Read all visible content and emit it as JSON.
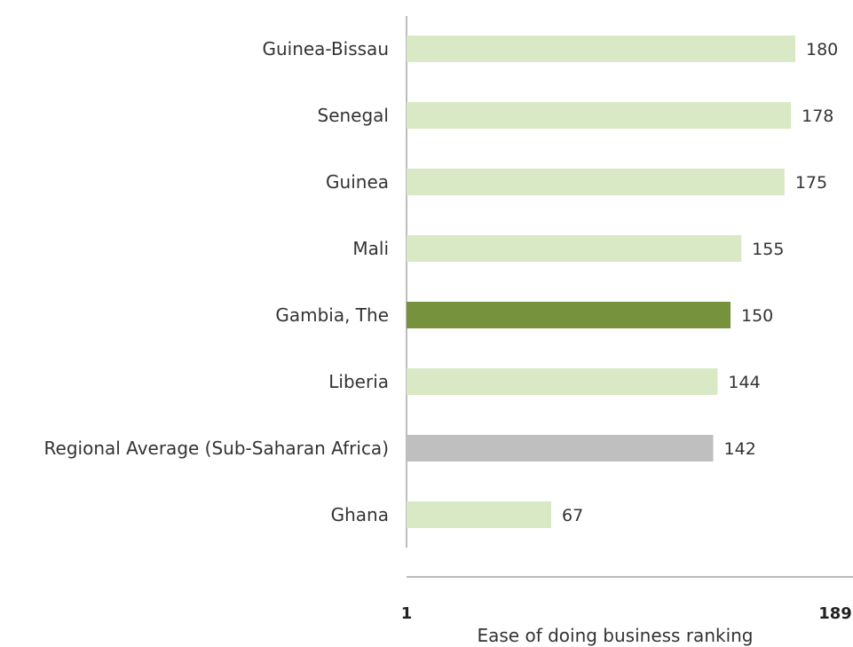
{
  "chart_data": {
    "type": "bar",
    "orientation": "horizontal",
    "categories": [
      "Guinea-Bissau",
      "Senegal",
      "Guinea",
      "Mali",
      "Gambia, The",
      "Liberia",
      "Regional Average (Sub-Saharan Africa)",
      "Ghana"
    ],
    "values": [
      180,
      178,
      175,
      155,
      150,
      144,
      142,
      67
    ],
    "bar_colors": [
      "#d9e8c5",
      "#d9e8c5",
      "#d9e8c5",
      "#d9e8c5",
      "#76923c",
      "#d9e8c5",
      "#bfbfbf",
      "#d9e8c5"
    ],
    "xlabel": "Ease of doing business ranking",
    "ylabel": "",
    "xlim": [
      1,
      189
    ],
    "axis_min_label": "1",
    "axis_max_label": "189",
    "grid": false,
    "legend": "none"
  }
}
